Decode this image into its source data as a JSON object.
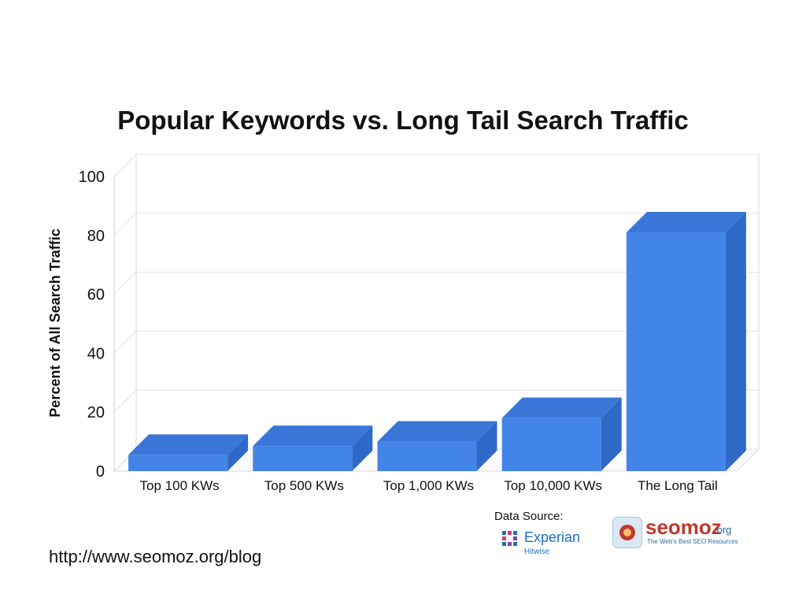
{
  "chart_data": {
    "type": "bar",
    "title": "Popular Keywords vs. Long Tail Search Traffic",
    "xlabel": "",
    "ylabel": "Percent of All Search Traffic",
    "categories": [
      "Top 100 KWs",
      "Top 500 KWs",
      "Top 1,000 KWs",
      "Top 10,000 KWs",
      "The Long Tail"
    ],
    "values": [
      5.5,
      8.5,
      10,
      18,
      81
    ],
    "ylim": [
      0,
      100
    ],
    "yticks": [
      "0",
      "20",
      "40",
      "60",
      "80",
      "100"
    ],
    "grid": true,
    "legend": "none",
    "colors": {
      "front": "#4384e8",
      "top": "#3a76d8",
      "side": "#2f69c8"
    }
  },
  "source": {
    "label": "Data Source:",
    "experian_name": "Experian",
    "experian_sub": "Hitwise",
    "seomoz_name": "seomoz",
    "seomoz_tld": ".org",
    "seomoz_tagline": "The Web's Best SEO Resources"
  },
  "footer_url": "http://www.seomoz.org/blog"
}
